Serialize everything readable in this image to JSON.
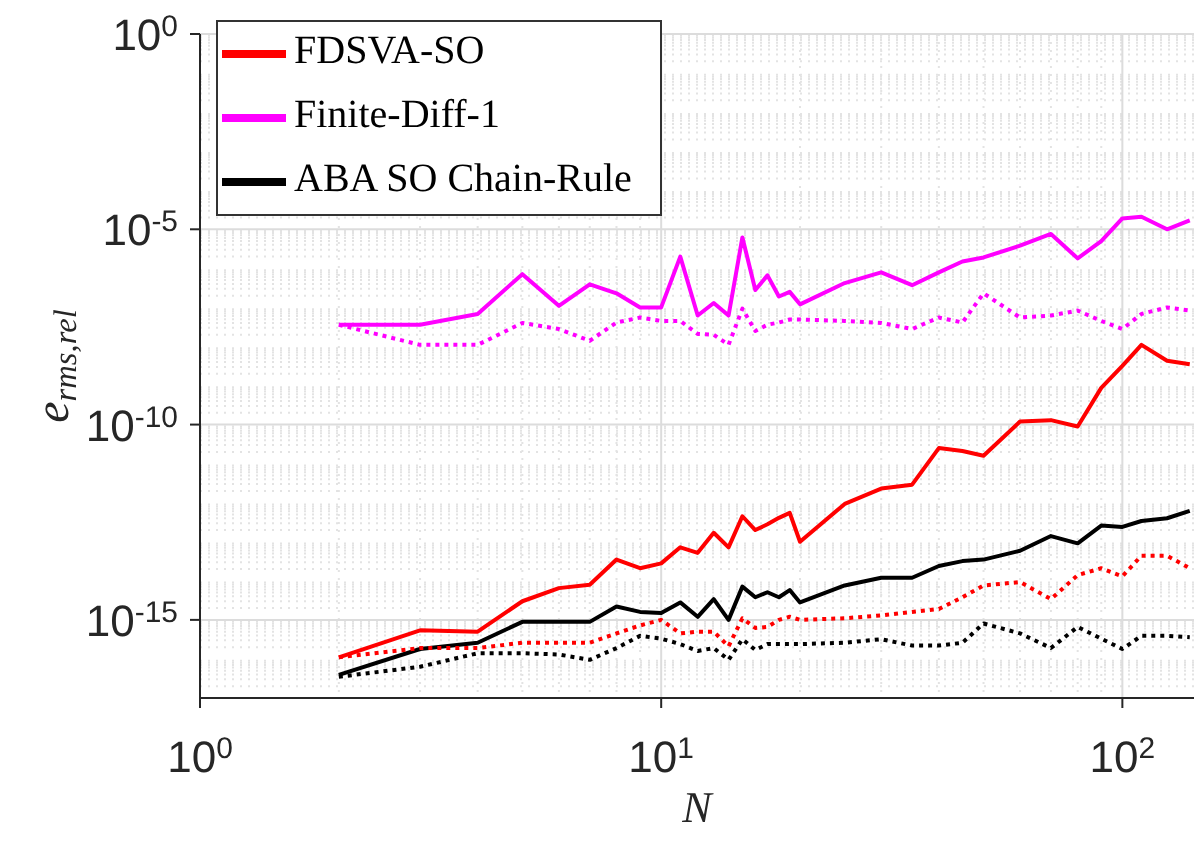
{
  "chart_data": {
    "type": "line",
    "xlabel": "N",
    "ylabel": "e$_{rms,rel}$",
    "log": "xy",
    "grid": true,
    "legend": "top left",
    "marker": "none",
    "x": [
      2,
      3,
      4,
      5,
      6,
      7,
      8,
      9,
      10,
      11,
      12,
      13,
      14,
      15,
      16,
      17,
      18,
      19,
      20,
      25,
      30,
      35,
      40,
      45,
      50,
      60,
      70,
      80,
      90,
      100,
      110,
      125,
      140
    ],
    "xlim": [
      1,
      143
    ],
    "ylim": [
      1e-17,
      1
    ],
    "xticks": [
      {
        "value": 1,
        "label": "10$^{0}$"
      },
      {
        "value": 10,
        "label": "10$^{1}$"
      },
      {
        "value": 100,
        "label": "10$^{2}$"
      }
    ],
    "yticks": [
      {
        "value": 1e-15,
        "label": "10$^{-15}$"
      },
      {
        "value": 1e-10,
        "label": "10$^{-10}$"
      },
      {
        "value": 1e-05,
        "label": "10$^{-5}$"
      },
      {
        "value": 1,
        "label": "10$^{0}$"
      }
    ],
    "series": [
      {
        "name": "FDSVA-SO",
        "color": "#ff0000",
        "line_style": "solid",
        "values": [
          1.1e-16,
          5.4e-16,
          5e-16,
          3e-15,
          6.5e-15,
          7.9e-15,
          3.5e-14,
          2.1e-14,
          2.8e-14,
          7.2e-14,
          5.2e-14,
          1.7e-13,
          7.2e-14,
          4.5e-13,
          2e-13,
          2.8e-13,
          4.1e-13,
          5.5e-13,
          1e-13,
          9.3e-13,
          2.3e-12,
          2.9e-12,
          2.5e-11,
          2.1e-11,
          1.6e-11,
          1.2e-10,
          1.3e-10,
          8.9e-11,
          8.7e-10,
          3.2e-09,
          1.1e-08,
          4.3e-09,
          3.5e-09
        ]
      },
      {
        "name": "Finite-Diff-1",
        "color": "#ff00ff",
        "line_style": "solid",
        "values": [
          3.6e-08,
          3.6e-08,
          6.8e-08,
          7.1e-07,
          1.1e-07,
          3.9e-07,
          2.3e-07,
          1e-07,
          1e-07,
          2e-06,
          6.2e-08,
          1.3e-07,
          6.2e-08,
          6.2e-06,
          2.8e-07,
          6.6e-07,
          1.9e-07,
          2.5e-07,
          1.2e-07,
          4.2e-07,
          7.9e-07,
          3.7e-07,
          7.9e-07,
          1.5e-06,
          1.9e-06,
          3.8e-06,
          7.6e-06,
          1.8e-06,
          5e-06,
          1.9e-05,
          2.1e-05,
          1e-05,
          1.7e-05
        ]
      },
      {
        "name": "ABA SO Chain-Rule",
        "color": "#000000",
        "line_style": "solid",
        "values": [
          3.9e-17,
          1.8e-16,
          2.6e-16,
          8.9e-16,
          8.9e-16,
          8.9e-16,
          2.2e-15,
          1.6e-15,
          1.5e-15,
          2.8e-15,
          1.2e-15,
          3.4e-15,
          1e-15,
          7.1e-15,
          3.8e-15,
          5.1e-15,
          3.8e-15,
          5.8e-15,
          2.8e-15,
          7.6e-15,
          1.2e-14,
          1.2e-14,
          2.4e-14,
          3.2e-14,
          3.5e-14,
          5.9e-14,
          1.4e-13,
          9.1e-14,
          2.6e-13,
          2.4e-13,
          3.4e-13,
          4e-13,
          6.2e-13
        ]
      },
      {
        "color": "#ff0000",
        "line_style": "dotted",
        "values": [
          1.1e-16,
          1.9e-16,
          1.9e-16,
          2.6e-16,
          2.6e-16,
          2.6e-16,
          4.5e-16,
          7.2e-16,
          1e-15,
          4.5e-16,
          5e-16,
          5e-16,
          2.1e-16,
          1.1e-15,
          6.2e-16,
          6.6e-16,
          1e-15,
          1.2e-15,
          1e-15,
          1.1e-15,
          1.3e-15,
          1.6e-15,
          1.9e-15,
          3.8e-15,
          7.6e-15,
          9.3e-15,
          3.4e-15,
          1.4e-14,
          2.1e-14,
          1.3e-14,
          4.4e-14,
          4.4e-14,
          2.1e-14
        ]
      },
      {
        "color": "#ff00ff",
        "line_style": "dotted",
        "values": [
          3.6e-08,
          1.1e-08,
          1.1e-08,
          4e-08,
          2.8e-08,
          1.4e-08,
          4.1e-08,
          5.5e-08,
          4.5e-08,
          4.5e-08,
          2.1e-08,
          2e-08,
          1.1e-08,
          9.3e-08,
          2.5e-08,
          3.6e-08,
          4.1e-08,
          4.9e-08,
          4.9e-08,
          4.5e-08,
          4e-08,
          2.8e-08,
          5.5e-08,
          4.1e-08,
          2.3e-07,
          5.5e-08,
          6.2e-08,
          8.3e-08,
          4.5e-08,
          2.8e-08,
          6.8e-08,
          1e-07,
          8.3e-08
        ]
      },
      {
        "color": "#000000",
        "line_style": "dotted",
        "values": [
          3.5e-17,
          6.3e-17,
          1.4e-16,
          1.4e-16,
          1.3e-16,
          9.5e-17,
          1.9e-16,
          3.9e-16,
          3.3e-16,
          2.4e-16,
          1.6e-16,
          1.9e-16,
          9.5e-17,
          3.2e-16,
          1.7e-16,
          2.4e-16,
          2.4e-16,
          2.4e-16,
          2.4e-16,
          2.6e-16,
          3.2e-16,
          2.2e-16,
          2.2e-16,
          2.6e-16,
          8.1e-16,
          4.5e-16,
          1.9e-16,
          6.6e-16,
          3.3e-16,
          1.8e-16,
          3.9e-16,
          3.9e-16,
          3.6e-16
        ]
      }
    ]
  }
}
